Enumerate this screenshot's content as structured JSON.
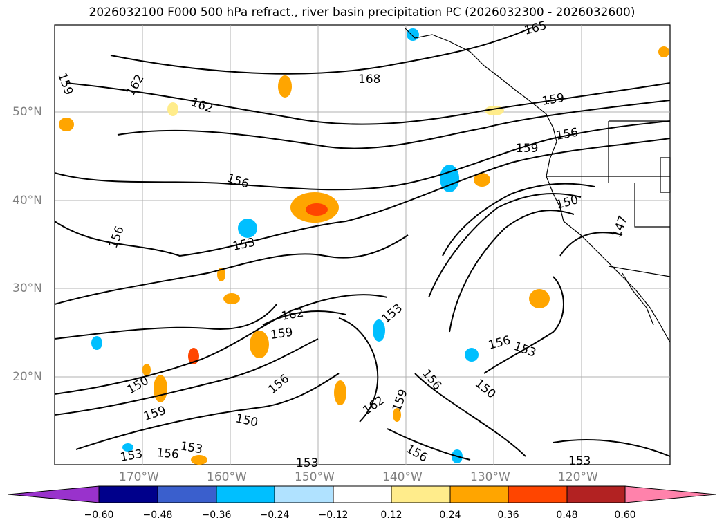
{
  "title": "2026032100 F000 500 hPa refract., river basin precipitation PC (2026032300 - 2026032600)",
  "lat_labels": [
    "50°N",
    "40°N",
    "30°N",
    "20°N"
  ],
  "lon_labels": [
    "170°W",
    "160°W",
    "150°W",
    "140°W",
    "130°W",
    "120°W"
  ],
  "colorbar": {
    "ticks": [
      "−0.60",
      "−0.48",
      "−0.36",
      "−0.24",
      "−0.12",
      "0.12",
      "0.24",
      "0.36",
      "0.48",
      "0.60"
    ],
    "colors": [
      "#9932cc",
      "#00008b",
      "#3a5fcd",
      "#00bfff",
      "#b0e2ff",
      "#ffffff",
      "#ffec8b",
      "#ffa500",
      "#ff4500",
      "#b22222",
      "#ff82ab"
    ]
  },
  "contour_labels": [
    "159",
    "162",
    "165",
    "168",
    "162",
    "159",
    "156",
    "156",
    "159",
    "156",
    "150",
    "153",
    "162",
    "159",
    "153",
    "156",
    "153",
    "156",
    "150",
    "150",
    "159",
    "150",
    "156",
    "153",
    "153",
    "156",
    "153",
    "162",
    "159",
    "156",
    "153",
    "147"
  ]
}
